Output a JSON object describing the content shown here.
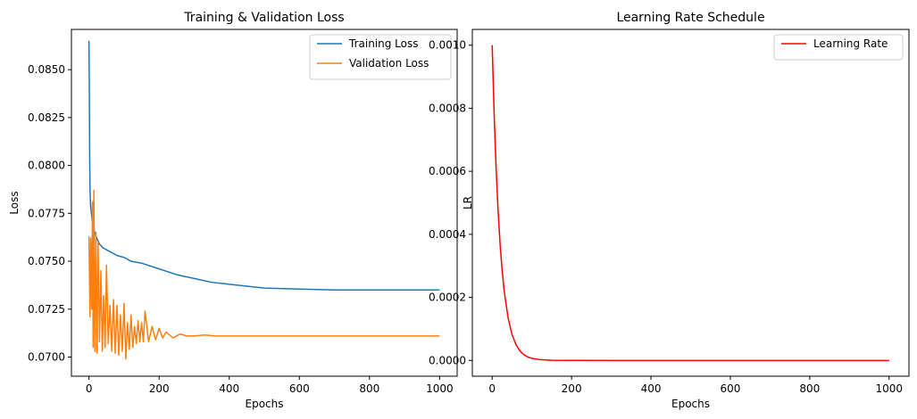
{
  "chart_data": [
    {
      "type": "line",
      "title": "Training & Validation Loss",
      "xlabel": "Epochs",
      "ylabel": "Loss",
      "xlim": [
        -50,
        1050
      ],
      "ylim": [
        0.069,
        0.0871
      ],
      "xticks": [
        0,
        200,
        400,
        600,
        800,
        1000
      ],
      "xtick_labels": [
        "0",
        "200",
        "400",
        "600",
        "800",
        "1000"
      ],
      "yticks": [
        0.07,
        0.0725,
        0.075,
        0.0775,
        0.08,
        0.0825,
        0.085
      ],
      "ytick_labels": [
        "0.0700",
        "0.0725",
        "0.0750",
        "0.0775",
        "0.0800",
        "0.0825",
        "0.0850"
      ],
      "legend": "top-right",
      "grid": false,
      "series": [
        {
          "name": "Training Loss",
          "color": "#1f77b4",
          "x": [
            0,
            1,
            2,
            3,
            4,
            5,
            7,
            10,
            15,
            20,
            25,
            30,
            40,
            50,
            60,
            80,
            100,
            120,
            150,
            200,
            250,
            300,
            350,
            400,
            450,
            500,
            600,
            700,
            800,
            900,
            1000
          ],
          "y": [
            0.0865,
            0.084,
            0.0805,
            0.0788,
            0.0781,
            0.0778,
            0.0775,
            0.077,
            0.0766,
            0.0763,
            0.0761,
            0.0759,
            0.0757,
            0.0756,
            0.0755,
            0.0753,
            0.0752,
            0.075,
            0.0749,
            0.0746,
            0.0743,
            0.0741,
            0.0739,
            0.0738,
            0.0737,
            0.0736,
            0.07355,
            0.0735,
            0.0735,
            0.0735,
            0.0735
          ]
        },
        {
          "name": "Validation Loss",
          "color": "#ff7f0e",
          "x": [
            0,
            3,
            5,
            8,
            10,
            12,
            14,
            17,
            20,
            23,
            26,
            30,
            34,
            38,
            42,
            46,
            50,
            55,
            60,
            65,
            70,
            75,
            80,
            85,
            90,
            95,
            100,
            105,
            110,
            115,
            120,
            125,
            130,
            135,
            140,
            145,
            150,
            155,
            160,
            170,
            180,
            190,
            200,
            210,
            220,
            240,
            260,
            280,
            300,
            330,
            360,
            400,
            450,
            500,
            600,
            700,
            800,
            900,
            1000
          ],
          "y": [
            0.0763,
            0.0721,
            0.0762,
            0.0725,
            0.0781,
            0.0705,
            0.0787,
            0.0703,
            0.0765,
            0.0702,
            0.076,
            0.0708,
            0.0745,
            0.0703,
            0.0732,
            0.0705,
            0.0748,
            0.0707,
            0.0727,
            0.0703,
            0.073,
            0.0702,
            0.0727,
            0.0701,
            0.0722,
            0.0703,
            0.0728,
            0.0699,
            0.0718,
            0.0704,
            0.0722,
            0.0705,
            0.0716,
            0.0707,
            0.0719,
            0.0708,
            0.0718,
            0.0708,
            0.0724,
            0.0708,
            0.0716,
            0.0709,
            0.0715,
            0.071,
            0.0713,
            0.071,
            0.0712,
            0.0711,
            0.0711,
            0.07115,
            0.0711,
            0.0711,
            0.0711,
            0.0711,
            0.0711,
            0.0711,
            0.0711,
            0.0711,
            0.0711
          ]
        }
      ]
    },
    {
      "type": "line",
      "title": "Learning Rate Schedule",
      "xlabel": "Epochs",
      "ylabel": "LR",
      "xlim": [
        -50,
        1050
      ],
      "ylim": [
        -5e-05,
        0.00105
      ],
      "xticks": [
        0,
        200,
        400,
        600,
        800,
        1000
      ],
      "xtick_labels": [
        "0",
        "200",
        "400",
        "600",
        "800",
        "1000"
      ],
      "yticks": [
        0.0,
        0.0002,
        0.0004,
        0.0006,
        0.0008,
        0.001
      ],
      "ytick_labels": [
        "0.0000",
        "0.0002",
        "0.0004",
        "0.0006",
        "0.0008",
        "0.0010"
      ],
      "legend": "top-right",
      "grid": false,
      "series": [
        {
          "name": "Learning Rate",
          "color": "#ff0000",
          "x": [
            0,
            5,
            10,
            15,
            20,
            25,
            30,
            40,
            50,
            60,
            70,
            80,
            90,
            100,
            120,
            150,
            200,
            300,
            400,
            600,
            800,
            1000
          ],
          "y": [
            0.001,
            0.000779,
            0.000607,
            0.000472,
            0.000368,
            0.000287,
            0.000223,
            0.000135,
            8.2e-05,
            5e-05,
            3e-05,
            1.8e-05,
            1.1e-05,
            6.7e-06,
            2.5e-06,
            6e-07,
            1e-07,
            0.0,
            0.0,
            0.0,
            0.0,
            0.0
          ]
        }
      ]
    }
  ]
}
